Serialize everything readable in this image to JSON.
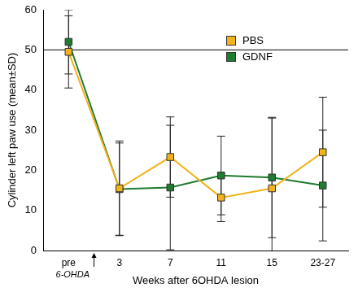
{
  "chart_data": {
    "type": "line",
    "y_label": "Cylinder left paw use (mean±SD)",
    "x_label": "Weeks after 6OHDA lesion",
    "categories": [
      "pre",
      "3",
      "7",
      "11",
      "15",
      "23-27"
    ],
    "series": [
      {
        "name": "PBS",
        "color": "#f2b31a",
        "marker": "square",
        "values": [
          49.5,
          15.5,
          23.3,
          13.2,
          15.5,
          24.5
        ],
        "error": [
          9,
          11.8,
          10,
          6,
          17.5,
          13.7
        ]
      },
      {
        "name": "GDNF",
        "color": "#1e7b30",
        "marker": "square",
        "values": [
          52,
          15.3,
          15.7,
          18.7,
          18.2,
          16.2
        ],
        "error": [
          8,
          11.5,
          15.5,
          9.8,
          15,
          13.8
        ]
      }
    ],
    "ylim": [
      0,
      60
    ],
    "yticks": [
      0,
      10,
      20,
      30,
      40,
      50,
      60
    ],
    "grid": false,
    "legend": "upper right",
    "reference_line": 50,
    "annotations": [
      {
        "text": "6-OHDA"
      }
    ]
  }
}
